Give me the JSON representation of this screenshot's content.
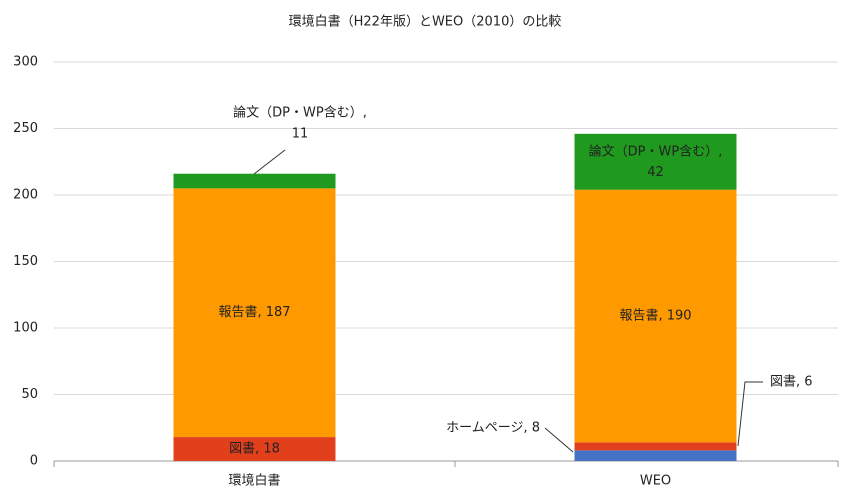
{
  "chart_data": {
    "type": "stacked_bar",
    "title": "環境白書（H22年版）とWEO（2010）の比較",
    "categories": [
      "環境白書",
      "WEO"
    ],
    "series": [
      {
        "name": "ホームページ",
        "color": "#4472c4",
        "values": [
          null,
          8
        ],
        "value_labels": [
          null,
          "ホームページ, 8"
        ]
      },
      {
        "name": "図書",
        "color": "#e2401c",
        "values": [
          18,
          6
        ],
        "value_labels": [
          "図書, 18",
          "図書, 6"
        ]
      },
      {
        "name": "報告書",
        "color": "#ff9900",
        "values": [
          187,
          190
        ],
        "value_labels": [
          "報告書, 187",
          "報告書, 190"
        ]
      },
      {
        "name": "論文（DP・WP含む）",
        "color": "#1f9a1f",
        "values": [
          11,
          42
        ],
        "value_labels": [
          "論文（DP・WP含む）, 11",
          "論文（DP・WP含む）, 42"
        ]
      }
    ],
    "ylim": [
      0,
      300
    ],
    "yticks": [
      0,
      50,
      100,
      150,
      200,
      250,
      300
    ],
    "grid": true
  }
}
